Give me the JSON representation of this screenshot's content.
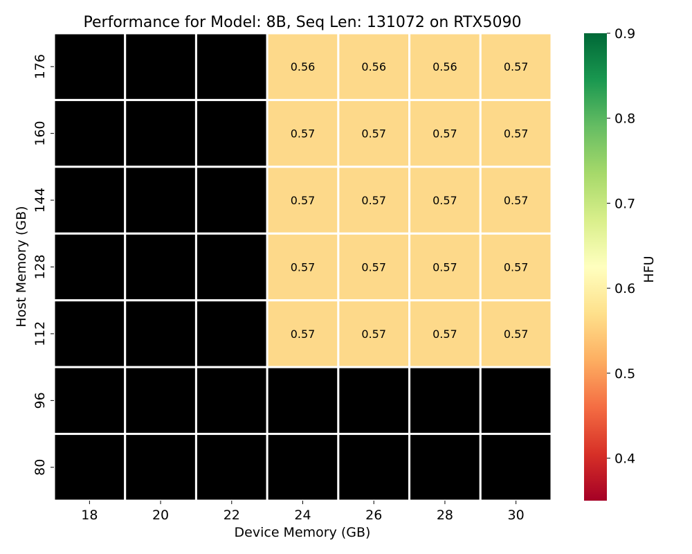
{
  "chart_data": {
    "type": "heatmap",
    "title": "Performance for Model: 8B, Seq Len: 131072 on RTX5090",
    "xlabel": "Device Memory (GB)",
    "ylabel": "Host Memory (GB)",
    "x_categories": [
      "18",
      "20",
      "22",
      "24",
      "26",
      "28",
      "30"
    ],
    "y_categories": [
      "176",
      "160",
      "144",
      "128",
      "112",
      "96",
      "80"
    ],
    "values": [
      [
        null,
        null,
        null,
        0.56,
        0.56,
        0.56,
        0.57
      ],
      [
        null,
        null,
        null,
        0.57,
        0.57,
        0.57,
        0.57
      ],
      [
        null,
        null,
        null,
        0.57,
        0.57,
        0.57,
        0.57
      ],
      [
        null,
        null,
        null,
        0.57,
        0.57,
        0.57,
        0.57
      ],
      [
        null,
        null,
        null,
        0.57,
        0.57,
        0.57,
        0.57
      ],
      [
        null,
        null,
        null,
        null,
        null,
        null,
        null
      ],
      [
        null,
        null,
        null,
        null,
        null,
        null,
        null
      ]
    ],
    "missing_color": "#000000",
    "colormap": "RdYlGn",
    "colorbar": {
      "label": "HFU",
      "range": [
        0.35,
        0.9
      ],
      "ticks": [
        "0.4",
        "0.5",
        "0.6",
        "0.7",
        "0.8",
        "0.9"
      ]
    }
  },
  "colors": {
    "cell_fill": "#fdd98a",
    "missing": "#000000",
    "grid_line": "#ffffff"
  }
}
